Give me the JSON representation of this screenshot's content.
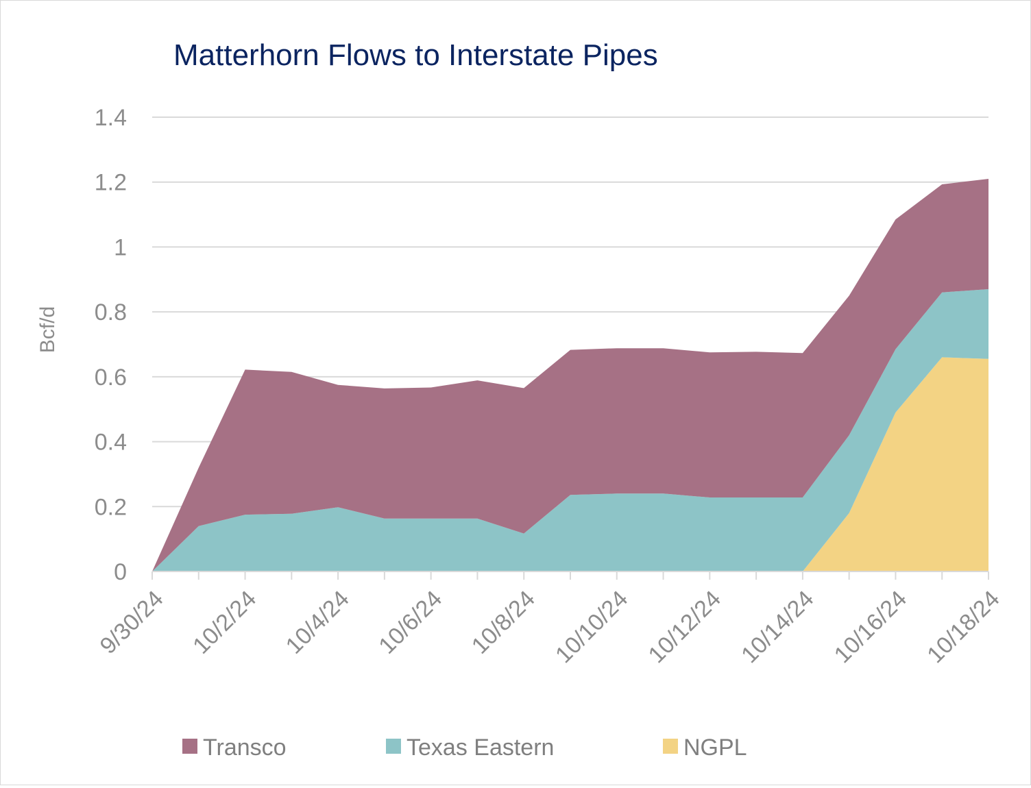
{
  "chart_data": {
    "type": "area",
    "stacked": true,
    "title": "Matterhorn Flows to Interstate Pipes",
    "ylabel": "Bcf/d",
    "xlabel": "",
    "ylim": [
      0,
      1.4
    ],
    "yticks": [
      "0",
      "0.2",
      "0.4",
      "0.6",
      "0.8",
      "1",
      "1.2",
      "1.4"
    ],
    "x": [
      "9/30/24",
      "10/1/24",
      "10/2/24",
      "10/3/24",
      "10/4/24",
      "10/5/24",
      "10/6/24",
      "10/7/24",
      "10/8/24",
      "10/9/24",
      "10/10/24",
      "10/11/24",
      "10/12/24",
      "10/13/24",
      "10/14/24",
      "10/15/24",
      "10/16/24",
      "10/17/24",
      "10/18/24"
    ],
    "x_tick_labels": [
      "9/30/24",
      "10/2/24",
      "10/4/24",
      "10/6/24",
      "10/8/24",
      "10/10/24",
      "10/12/24",
      "10/14/24",
      "10/16/24",
      "10/18/24"
    ],
    "grid": true,
    "legend_position": "bottom",
    "series": [
      {
        "name": "NGPL",
        "color": "#f3d384",
        "values": [
          0,
          0,
          0,
          0,
          0,
          0,
          0,
          0,
          0,
          0,
          0,
          0,
          0,
          0,
          0,
          0.18,
          0.49,
          0.66,
          0.655
        ]
      },
      {
        "name": "Texas Eastern",
        "color": "#8dc4c7",
        "values": [
          0,
          0.14,
          0.175,
          0.178,
          0.198,
          0.163,
          0.163,
          0.163,
          0.117,
          0.236,
          0.24,
          0.24,
          0.228,
          0.228,
          0.228,
          0.24,
          0.195,
          0.2,
          0.215
        ]
      },
      {
        "name": "Transco",
        "color": "#a67185",
        "values": [
          0,
          0.18,
          0.447,
          0.437,
          0.377,
          0.401,
          0.404,
          0.426,
          0.448,
          0.447,
          0.448,
          0.448,
          0.447,
          0.449,
          0.445,
          0.43,
          0.4,
          0.333,
          0.34
        ]
      }
    ],
    "legend_order": [
      "Transco",
      "Texas Eastern",
      "NGPL"
    ]
  }
}
